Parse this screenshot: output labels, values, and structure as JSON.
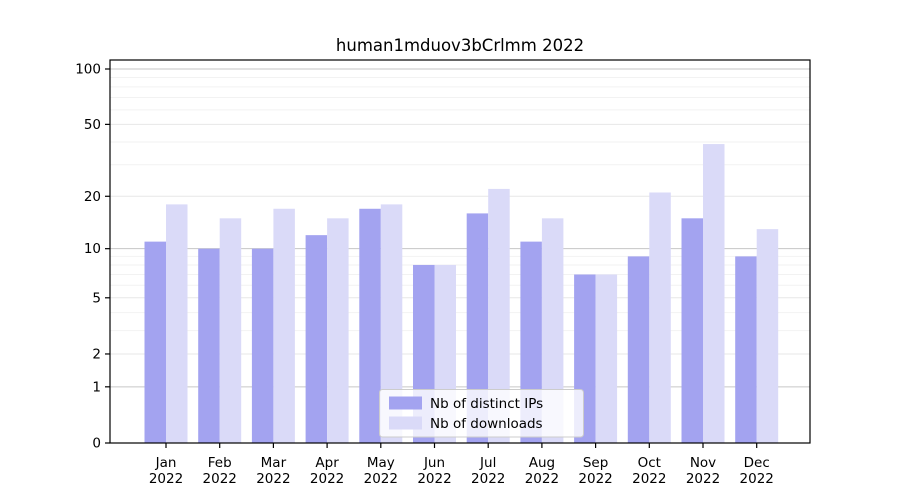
{
  "figure": {
    "background": "#ffffff"
  },
  "chart_data": {
    "type": "bar",
    "title": "human1mduov3bCrlmm 2022",
    "categories": [
      "Jan",
      "Feb",
      "Mar",
      "Apr",
      "May",
      "Jun",
      "Jul",
      "Aug",
      "Sep",
      "Oct",
      "Nov",
      "Dec"
    ],
    "year": "2022",
    "series": [
      {
        "name": "Nb of distinct IPs",
        "color": "#a3a3f0",
        "values": [
          11,
          10,
          10,
          12,
          17,
          8,
          16,
          11,
          7,
          9,
          15,
          9
        ]
      },
      {
        "name": "Nb of downloads",
        "color": "#dadaf8",
        "values": [
          18,
          15,
          17,
          15,
          18,
          8,
          22,
          15,
          7,
          21,
          39,
          13
        ]
      }
    ],
    "xlabel": "",
    "ylabel": "",
    "yscale": "log1p",
    "yticks": [
      0,
      1,
      2,
      5,
      10,
      20,
      50,
      100
    ],
    "minor_yticks": [
      3,
      4,
      6,
      7,
      8,
      9,
      30,
      40,
      60,
      70,
      80,
      90
    ],
    "ylim": [
      0,
      113
    ],
    "grid": "horizontal",
    "legend_position": "lower-center",
    "colors": {
      "decade_gridline": "#c6c6c6",
      "labeled_gridline": "#e7e7e7",
      "minor_gridline": "#f2f2f2",
      "axis": "#000000",
      "legend_border": "#cccccc",
      "legend_background": "rgba(255,255,255,0.8)"
    }
  }
}
